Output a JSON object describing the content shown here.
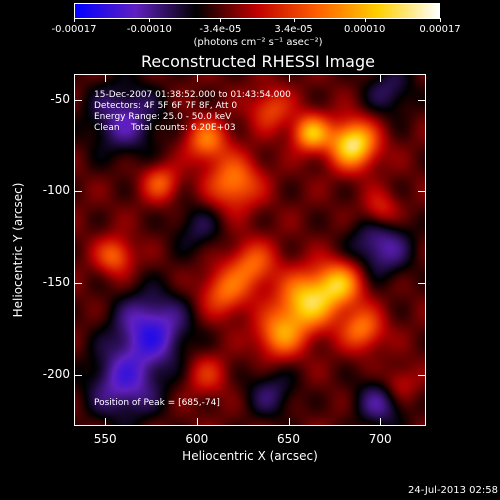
{
  "colorbar": {
    "ticks": [
      "-0.00017",
      "-0.00010",
      "-3.4e-05",
      "3.4e-05",
      "0.00010",
      "0.00017"
    ],
    "tick_values": [
      -0.00017,
      -0.0001,
      -3.4e-05,
      3.4e-05,
      0.0001,
      0.00017
    ],
    "unit": "(photons cm⁻² s⁻¹ asec⁻²)",
    "range": [
      -0.00017,
      0.00017
    ],
    "colors": [
      "#0000ff",
      "#6020c0",
      "#000000",
      "#c00000",
      "#ff6000",
      "#ffd000",
      "#ffffff"
    ]
  },
  "chart_data": {
    "type": "heatmap",
    "title": "Reconstructed RHESSI Image",
    "xlabel": "Heliocentric X (arcsec)",
    "ylabel": "Heliocentric Y (arcsec)",
    "xlim": [
      533,
      725
    ],
    "ylim": [
      -228,
      -36
    ],
    "xticks": [
      550,
      600,
      650,
      700
    ],
    "yticks": [
      -50,
      -100,
      -150,
      -200
    ],
    "annotations": {
      "time": "15-Dec-2007 01:38:52.000 to 01:43:54.000",
      "detectors": "Detectors: 4F 5F 6F 7F 8F, Att 0",
      "energy": "Energy Range: 25.0 - 50.0 keV",
      "clean": "Clean    Total counts: 6.20E+03",
      "peak": "Position of Peak = [685,-74]"
    },
    "peak": [
      685,
      -74
    ],
    "sources": [
      {
        "x": 685,
        "y": -74,
        "amp": 1.0,
        "w": 9
      },
      {
        "x": 662,
        "y": -68,
        "amp": 0.75,
        "w": 7
      },
      {
        "x": 660,
        "y": -160,
        "amp": 0.85,
        "w": 11
      },
      {
        "x": 678,
        "y": -150,
        "amp": 0.7,
        "w": 9
      },
      {
        "x": 645,
        "y": -178,
        "amp": 0.6,
        "w": 9
      },
      {
        "x": 690,
        "y": -175,
        "amp": 0.55,
        "w": 8
      },
      {
        "x": 620,
        "y": -95,
        "amp": 0.6,
        "w": 10
      },
      {
        "x": 605,
        "y": -72,
        "amp": 0.55,
        "w": 8
      },
      {
        "x": 630,
        "y": -140,
        "amp": 0.5,
        "w": 9
      },
      {
        "x": 615,
        "y": -155,
        "amp": 0.5,
        "w": 9
      },
      {
        "x": 580,
        "y": -95,
        "amp": 0.45,
        "w": 7
      },
      {
        "x": 555,
        "y": -135,
        "amp": 0.5,
        "w": 7
      },
      {
        "x": 640,
        "y": -55,
        "amp": 0.4,
        "w": 8
      },
      {
        "x": 700,
        "y": -110,
        "amp": 0.35,
        "w": 7
      },
      {
        "x": 605,
        "y": -200,
        "amp": 0.3,
        "w": 8
      },
      {
        "x": 710,
        "y": -205,
        "amp": 0.3,
        "w": 7
      },
      {
        "x": 575,
        "y": -175,
        "amp": -0.6,
        "w": 14
      },
      {
        "x": 560,
        "y": -60,
        "amp": -0.45,
        "w": 14
      },
      {
        "x": 700,
        "y": -130,
        "amp": -0.45,
        "w": 12
      },
      {
        "x": 560,
        "y": -205,
        "amp": -0.5,
        "w": 14
      },
      {
        "x": 700,
        "y": -215,
        "amp": -0.4,
        "w": 10
      },
      {
        "x": 600,
        "y": -120,
        "amp": -0.25,
        "w": 10
      },
      {
        "x": 705,
        "y": -45,
        "amp": -0.3,
        "w": 10
      },
      {
        "x": 640,
        "y": -210,
        "amp": -0.3,
        "w": 10
      }
    ]
  },
  "timestamp": "24-Jul-2013 02:58"
}
